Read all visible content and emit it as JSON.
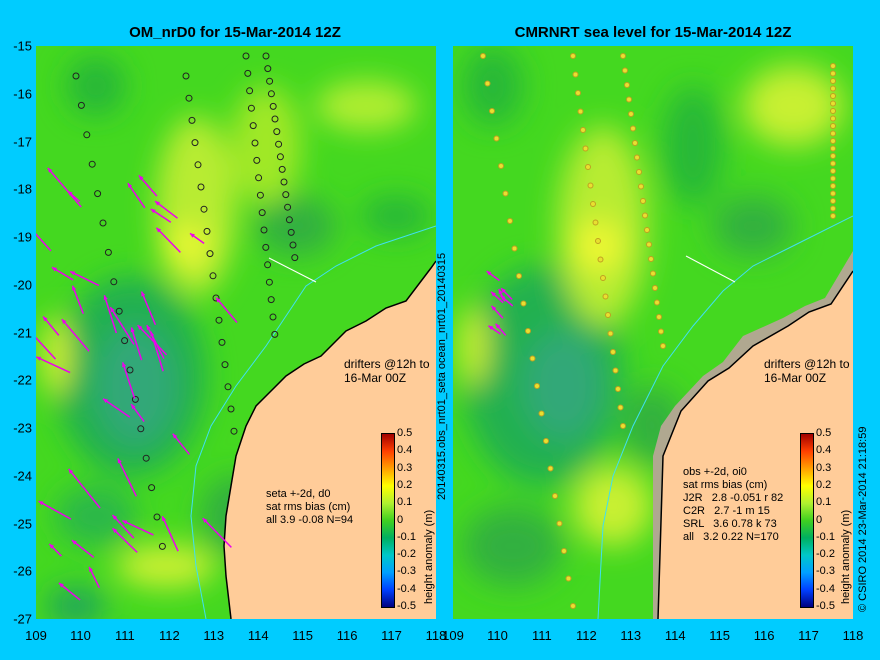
{
  "left_panel": {
    "title": "OM_nrD0 for 15-Mar-2014 12Z",
    "lat_labels": [
      "-15",
      "-16",
      "-17",
      "-18",
      "-19",
      "-20",
      "-21",
      "-22",
      "-23",
      "-24",
      "-25",
      "-26",
      "-27"
    ],
    "lon_labels": [
      "109",
      "110",
      "111",
      "112",
      "113",
      "114",
      "115",
      "116",
      "117",
      "118"
    ],
    "drifter_note": "drifters @12h to\n16-Mar 00Z",
    "stats": "seta +-2d, d0\nsat rms bias (cm)\nall 3.9 -0.08 N=94"
  },
  "right_panel": {
    "title": "CMRNRT sea level  for 15-Mar-2014 12Z",
    "lon_labels": [
      "109",
      "110",
      "111",
      "112",
      "113",
      "114",
      "115",
      "116",
      "117",
      "118"
    ],
    "drifter_note": "drifters @12h to\n16-Mar 00Z",
    "stats": "obs +-2d, oi0\nsat rms bias (cm)\nJ2R   2.8 -0.051 r 82\nC2R   2.7 -1 m 15\nSRL   3.6 0.78 k 73\nall   3.2 0.22 N=170"
  },
  "vertical_labels": {
    "middle": "20140315.obs_nrt01_seta     ocean_nrt01_20140315",
    "credit": "© CSIRO 2014   23-Mar-2014 21:18:59"
  },
  "colorbar": {
    "label": "height anomaly (m)",
    "ticks": [
      "0.5",
      "0.4",
      "0.3",
      "0.2",
      "0.1",
      "0",
      "-0.1",
      "-0.2",
      "-0.3",
      "-0.4",
      "-0.5"
    ],
    "range": [
      -0.5,
      0.5
    ],
    "colors": [
      "#000080",
      "#0040ff",
      "#00a0ff",
      "#00c8c8",
      "#00b060",
      "#40d020",
      "#b0f030",
      "#ffff00",
      "#ffa000",
      "#ff4000",
      "#a00000"
    ]
  },
  "colors": {
    "background": "#00ccff",
    "land": "#ffcc99",
    "ocean_mid": "#44d820",
    "ocean_low": "#20b050",
    "ocean_high": "#c8f030",
    "drifter": "#ee00ee"
  }
}
